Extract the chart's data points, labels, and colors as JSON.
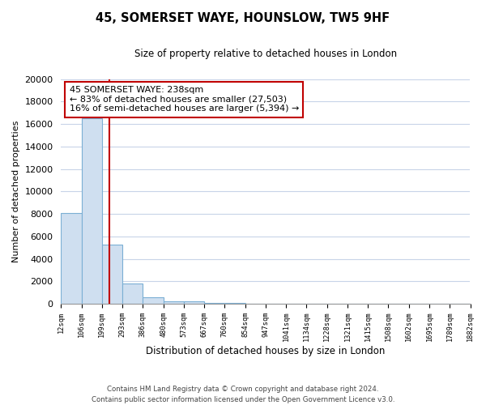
{
  "title": "45, SOMERSET WAYE, HOUNSLOW, TW5 9HF",
  "subtitle": "Size of property relative to detached houses in London",
  "bar_values": [
    8100,
    16500,
    5300,
    1800,
    600,
    250,
    200,
    100,
    100,
    0,
    0,
    0,
    0,
    0,
    0,
    0,
    0,
    0,
    0,
    0
  ],
  "categories": [
    "12sqm",
    "106sqm",
    "199sqm",
    "293sqm",
    "386sqm",
    "480sqm",
    "573sqm",
    "667sqm",
    "760sqm",
    "854sqm",
    "947sqm",
    "1041sqm",
    "1134sqm",
    "1228sqm",
    "1321sqm",
    "1415sqm",
    "1508sqm",
    "1602sqm",
    "1695sqm",
    "1789sqm",
    "1882sqm"
  ],
  "bar_color": "#cfdff0",
  "bar_edge_color": "#7bafd4",
  "redline_x": 2.35,
  "redline_label": "45 SOMERSET WAYE: 238sqm",
  "annotation_line1": "← 83% of detached houses are smaller (27,503)",
  "annotation_line2": "16% of semi-detached houses are larger (5,394) →",
  "ylabel": "Number of detached properties",
  "xlabel": "Distribution of detached houses by size in London",
  "ylim": [
    0,
    20000
  ],
  "yticks": [
    0,
    2000,
    4000,
    6000,
    8000,
    10000,
    12000,
    14000,
    16000,
    18000,
    20000
  ],
  "footer_line1": "Contains HM Land Registry data © Crown copyright and database right 2024.",
  "footer_line2": "Contains public sector information licensed under the Open Government Licence v3.0.",
  "box_color": "#c00000",
  "bg_color": "#ffffff",
  "grid_color": "#c8d4e8"
}
